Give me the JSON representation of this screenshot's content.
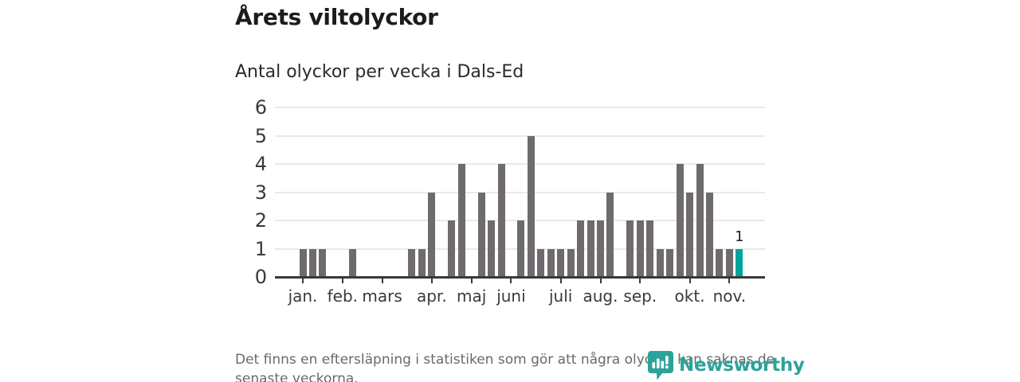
{
  "header": {
    "title": "Årets viltolyckor",
    "subtitle": "Antal olyckor per vecka i Dals-Ed"
  },
  "chart_data": {
    "type": "bar",
    "title": "Årets viltolyckor",
    "subtitle": "Antal olyckor per vecka i Dals-Ed",
    "x_unit": "vecka",
    "first_week": 1,
    "values": [
      1,
      1,
      1,
      0,
      0,
      1,
      0,
      0,
      0,
      0,
      0,
      1,
      1,
      3,
      0,
      2,
      4,
      0,
      3,
      2,
      4,
      0,
      2,
      5,
      1,
      1,
      1,
      1,
      2,
      2,
      2,
      3,
      0,
      2,
      2,
      2,
      1,
      1,
      4,
      3,
      4,
      3,
      1,
      1,
      1
    ],
    "ylim": [
      0,
      6
    ],
    "yticks": [
      0,
      1,
      2,
      3,
      4,
      5,
      6
    ],
    "grid": true,
    "legend": "none",
    "month_ticks": [
      {
        "label": "jan.",
        "week": 1
      },
      {
        "label": "feb.",
        "week": 5
      },
      {
        "label": "mars",
        "week": 9
      },
      {
        "label": "apr.",
        "week": 14
      },
      {
        "label": "maj",
        "week": 18
      },
      {
        "label": "juni",
        "week": 22
      },
      {
        "label": "juli",
        "week": 27
      },
      {
        "label": "aug.",
        "week": 31
      },
      {
        "label": "sep.",
        "week": 35
      },
      {
        "label": "okt.",
        "week": 40
      },
      {
        "label": "nov.",
        "week": 44
      }
    ],
    "highlight": {
      "week": 45,
      "value": 1,
      "annotation": "1"
    },
    "colors": {
      "bar": "#6e6a6e",
      "highlight": "#00a49c",
      "axis": "#3a3a3a",
      "grid": "#e9e9e9",
      "label": "#3a3a3a",
      "annotation": "#222222"
    }
  },
  "footer": {
    "lines": [
      "Det finns en eftersläpning i statistiken som gör att några olyckor kan saknas de",
      "senaste veckorna."
    ]
  },
  "logo": {
    "brand": "Newsworthy",
    "color": "#2ca39a",
    "icon": "newsworthy-pin-barchart-icon"
  }
}
